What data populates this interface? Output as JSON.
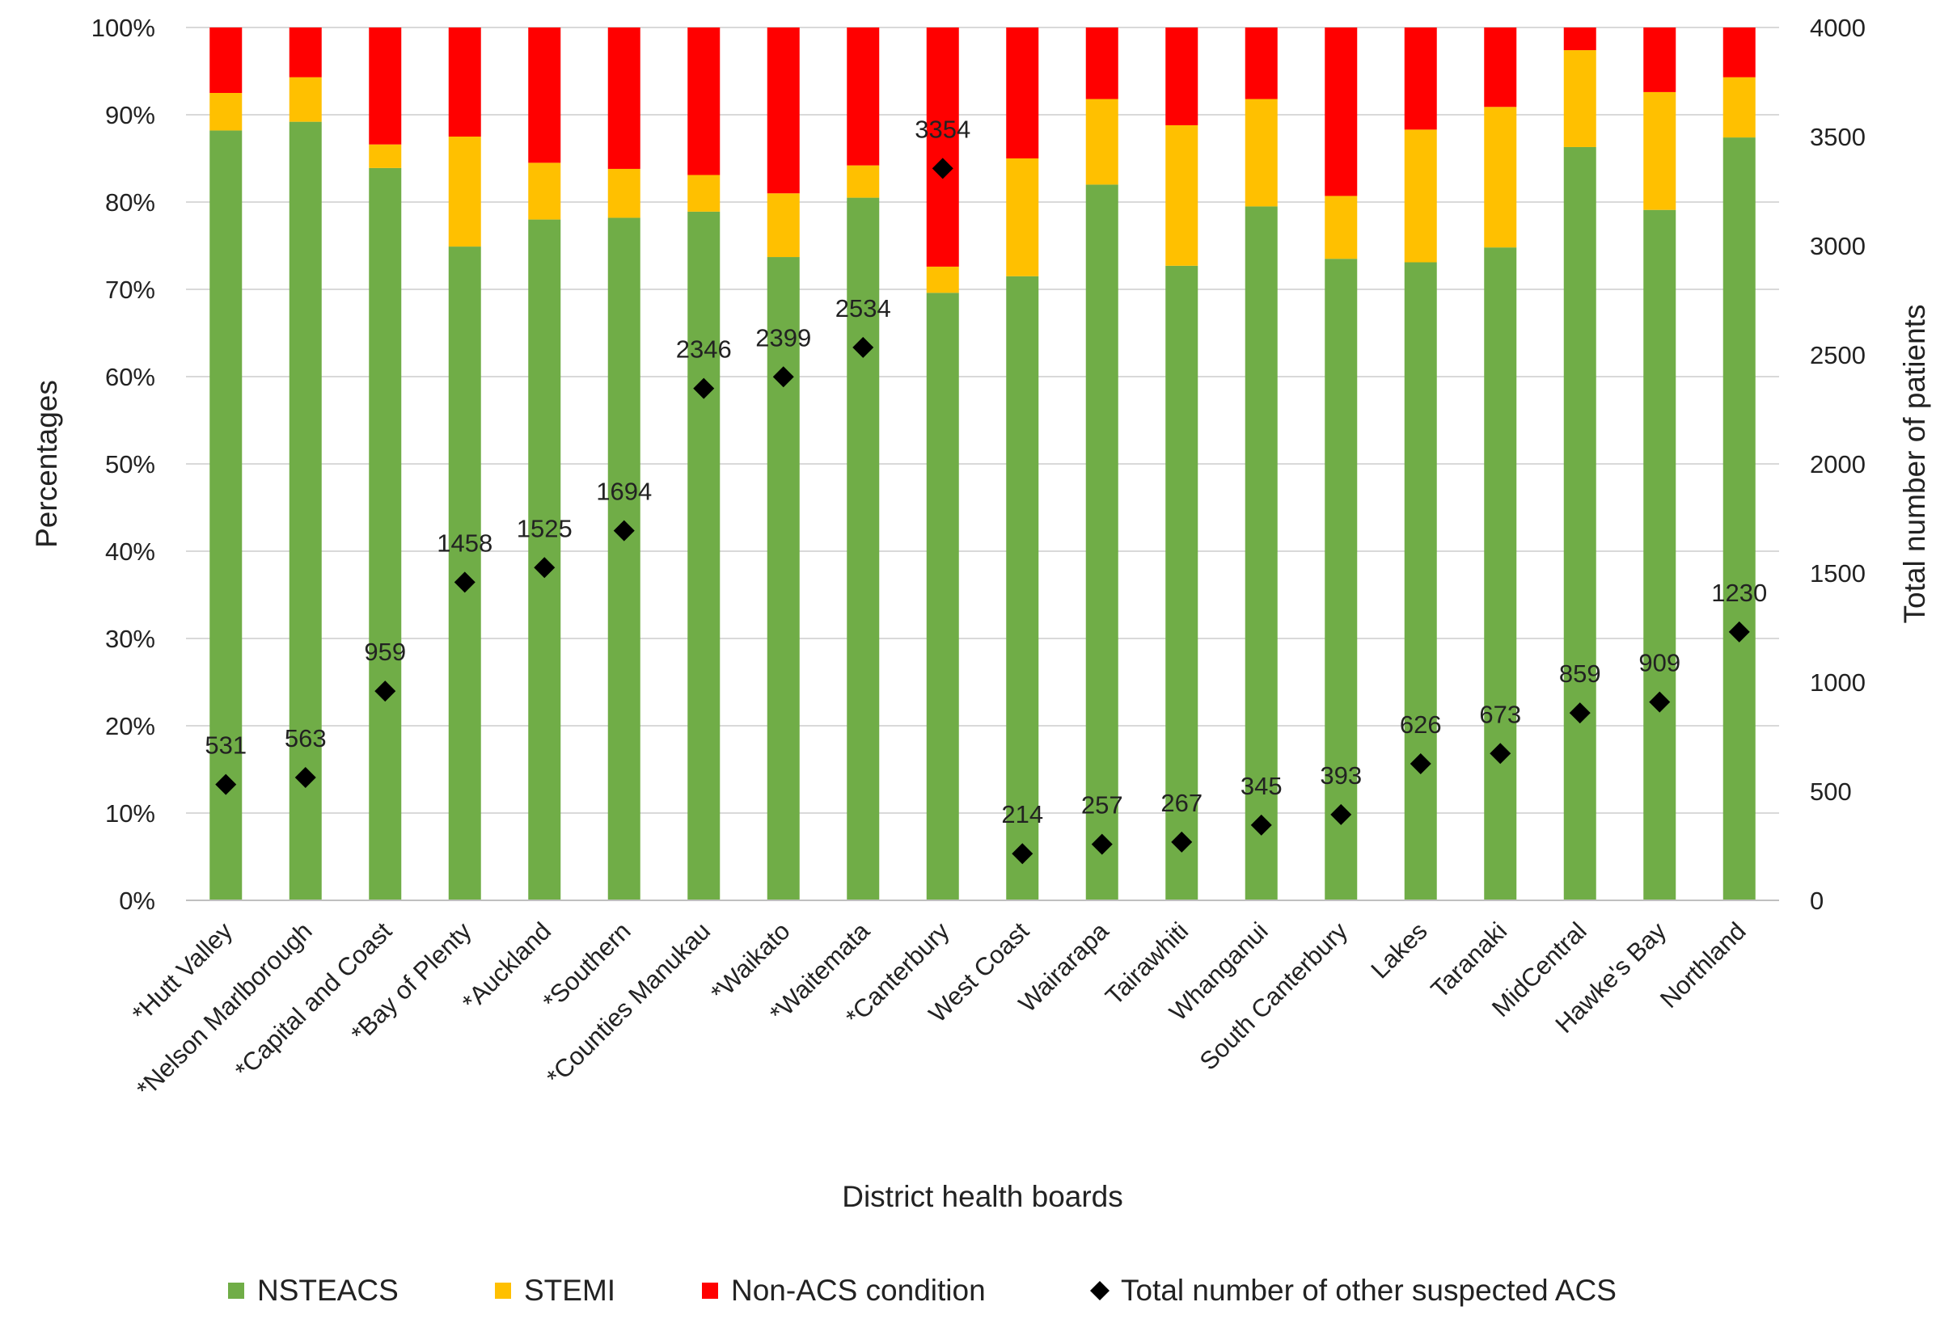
{
  "chart_data": {
    "type": "bar",
    "stacked": true,
    "xlabel": "District health boards",
    "ylabel": "Percentages",
    "y2label": "Total number of patients",
    "ylim": [
      0,
      100
    ],
    "y2lim": [
      0,
      4000
    ],
    "yticks": [
      "0%",
      "10%",
      "20%",
      "30%",
      "40%",
      "50%",
      "60%",
      "70%",
      "80%",
      "90%",
      "100%"
    ],
    "y2ticks": [
      "0",
      "500",
      "1000",
      "1500",
      "2000",
      "2500",
      "3000",
      "3500",
      "4000"
    ],
    "grid": true,
    "legend_position": "bottom",
    "categories": [
      "*Hutt Valley",
      "*Nelson Marlborough",
      "*Capital and Coast",
      "*Bay of Plenty",
      "*Auckland",
      "*Southern",
      "*Counties Manukau",
      "*Waikato",
      "*Waitemata",
      "*Canterbury",
      "West Coast",
      "Wairarapa",
      "Tairawhiti",
      "Whanganui",
      "South Canterbury",
      "Lakes",
      "Taranaki",
      "MidCentral",
      "Hawke's Bay",
      "Northland"
    ],
    "series": [
      {
        "name": "NSTEACS",
        "color": "#70AD47",
        "values": [
          88.2,
          89.2,
          83.9,
          74.9,
          78.0,
          78.2,
          78.9,
          73.7,
          80.5,
          69.6,
          71.5,
          82.0,
          72.7,
          79.5,
          73.5,
          73.1,
          74.8,
          86.3,
          79.1,
          87.4
        ]
      },
      {
        "name": "STEMI",
        "color": "#FFC000",
        "values": [
          4.3,
          5.1,
          2.7,
          12.6,
          6.5,
          5.6,
          4.2,
          7.3,
          3.7,
          3.0,
          13.5,
          9.8,
          16.1,
          12.3,
          7.2,
          15.2,
          16.1,
          11.1,
          13.5,
          6.9
        ]
      },
      {
        "name": "Non-ACS condition",
        "color": "#FF0000",
        "values": [
          7.5,
          5.7,
          13.4,
          12.5,
          15.5,
          16.2,
          16.9,
          19.0,
          15.8,
          27.4,
          15.0,
          8.2,
          11.2,
          8.2,
          19.3,
          11.7,
          9.1,
          2.6,
          7.4,
          5.7
        ]
      }
    ],
    "scatter": {
      "name": "Total number of other suspected ACS",
      "color": "#000000",
      "axis": "right",
      "values": [
        531,
        563,
        959,
        1458,
        1525,
        1694,
        2346,
        2399,
        2534,
        3354,
        214,
        257,
        267,
        345,
        393,
        626,
        673,
        859,
        909,
        1230
      ]
    }
  }
}
